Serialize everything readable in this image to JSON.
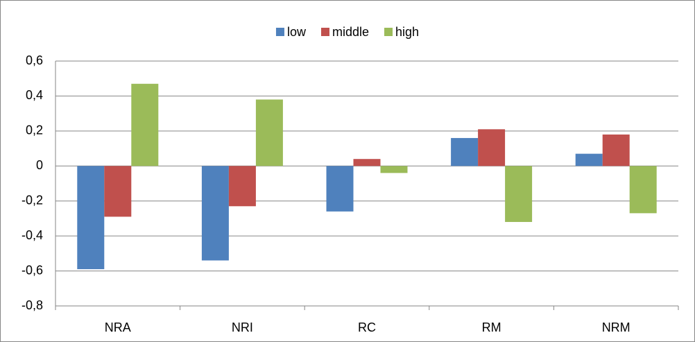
{
  "chart_data": {
    "type": "bar",
    "categories": [
      "NRA",
      "NRI",
      "RC",
      "RM",
      "NRM"
    ],
    "series": [
      {
        "name": "low",
        "color": "#4f81bd",
        "values": [
          -0.59,
          -0.54,
          -0.26,
          0.16,
          0.07
        ]
      },
      {
        "name": "middle",
        "color": "#c0504d",
        "values": [
          -0.29,
          -0.23,
          0.04,
          0.21,
          0.18
        ]
      },
      {
        "name": "high",
        "color": "#9bbb59",
        "values": [
          0.47,
          0.38,
          -0.04,
          -0.32,
          -0.27
        ]
      }
    ],
    "ylim": [
      -0.8,
      0.6
    ],
    "yticks": [
      {
        "value": -0.8,
        "label": "-0,8"
      },
      {
        "value": -0.6,
        "label": "-0,6"
      },
      {
        "value": -0.4,
        "label": "-0,4"
      },
      {
        "value": -0.2,
        "label": "-0,2"
      },
      0,
      {
        "value": 0.2,
        "label": "0,2"
      },
      {
        "value": 0.4,
        "label": "0,4"
      },
      {
        "value": 0.6,
        "label": "0,6"
      }
    ],
    "grid": true,
    "legend": "top"
  }
}
